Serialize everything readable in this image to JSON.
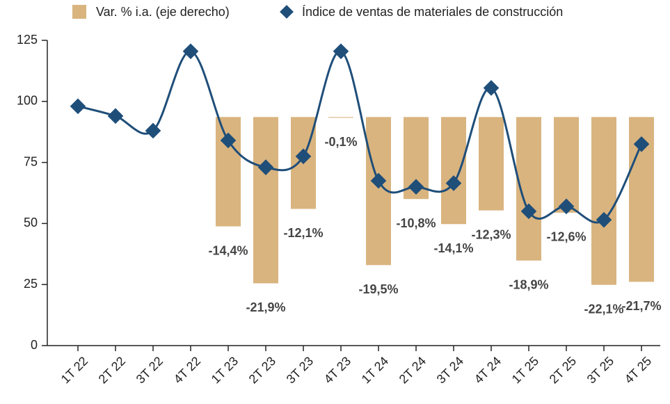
{
  "chart_data": {
    "type": "bar-line",
    "categories": [
      "1T 22",
      "2T 22",
      "3T 22",
      "4T 22",
      "1T 23",
      "2T 23",
      "3T 23",
      "4T 23",
      "1T 24",
      "2T 24",
      "3T 24",
      "4T 24",
      "1T 25",
      "2T 25",
      "3T 25",
      "4T 25"
    ],
    "series": [
      {
        "name": "Var. % i.a. (eje derecho)",
        "type": "bar",
        "axis": "y2",
        "color": "#d9b47f",
        "values": [
          null,
          null,
          null,
          null,
          -14.4,
          -21.9,
          -12.1,
          -0.1,
          -19.5,
          -10.8,
          -14.1,
          -12.3,
          -18.9,
          -12.6,
          -22.1,
          -21.7
        ],
        "value_labels": [
          null,
          null,
          null,
          null,
          "-14,4%",
          "-21,9%",
          "-12,1%",
          "-0,1%",
          "-19,5%",
          "-10,8%",
          "-14,1%",
          "-12,3%",
          "-18,9%",
          "-12,6%",
          "-22,1%",
          "-21,7%"
        ]
      },
      {
        "name": "Índice de ventas de materiales de construcción",
        "type": "line",
        "color": "#1f4e79",
        "values": [
          98,
          94,
          88,
          120.5,
          84,
          73,
          77.5,
          120.5,
          67.5,
          65,
          66.5,
          105.5,
          55,
          57,
          51.5,
          82.5
        ]
      }
    ],
    "ylim": [
      0,
      125
    ],
    "yticks": [
      0,
      25,
      50,
      75,
      100,
      125
    ],
    "y2lim": [
      -30.1,
      10.1
    ]
  }
}
